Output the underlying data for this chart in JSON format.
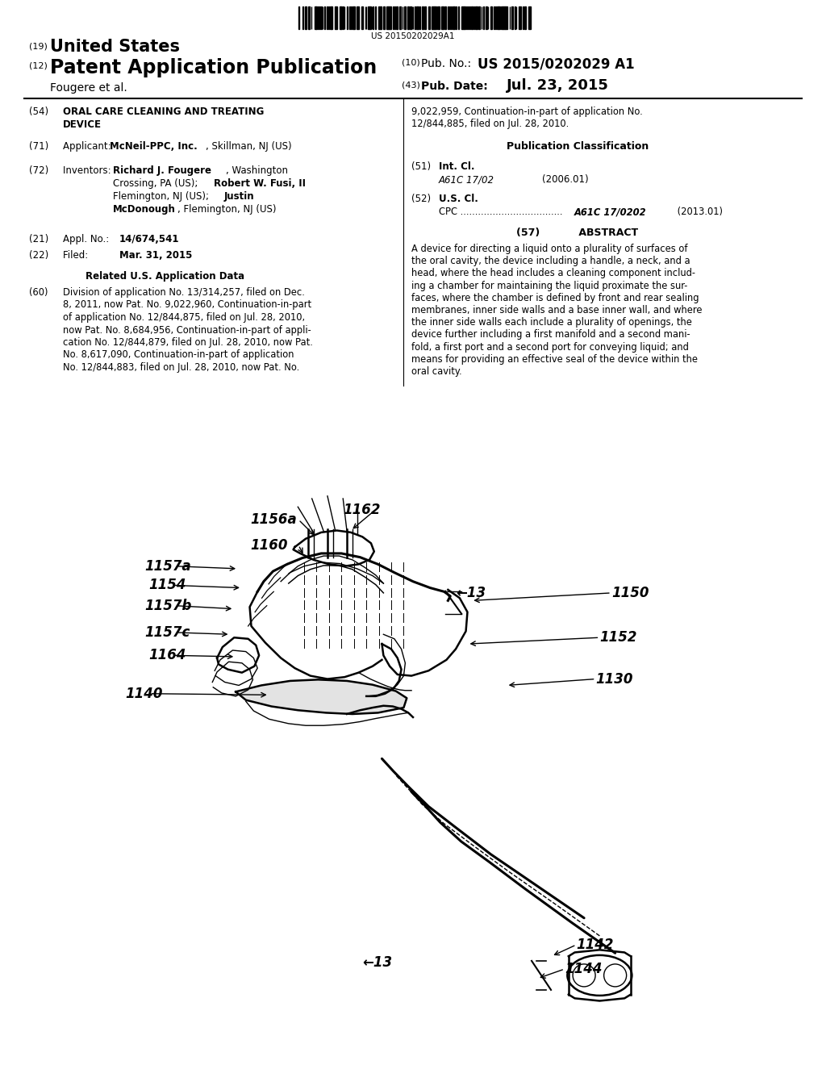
{
  "bg_color": "#ffffff",
  "barcode_text": "US 20150202029A1",
  "header_line1_num": "(19)",
  "header_line1_text": "United States",
  "header_line2_num": "(12)",
  "header_line2_text": "Patent Application Publication",
  "header_right1_num": "(10)",
  "header_right1_label": "Pub. No.:",
  "header_right1_val": "US 2015/0202029 A1",
  "header_line3_name": "Fougere et al.",
  "header_right2_num": "(43)",
  "header_right2_label": "Pub. Date:",
  "header_right2_val": "Jul. 23, 2015",
  "field54_label": "(54)",
  "field71_label": "(71)",
  "field72_label": "(72)",
  "field21_label": "(21)",
  "field22_label": "(22)",
  "field60_label": "(60)",
  "field51_label": "(51)",
  "field52_label": "(52)",
  "field57_label": "(57)"
}
